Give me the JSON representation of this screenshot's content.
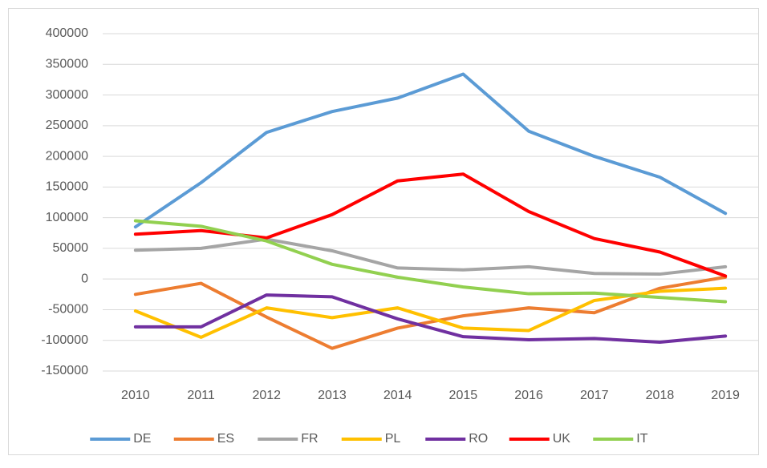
{
  "chart_data": {
    "type": "line",
    "categories": [
      "2010",
      "2011",
      "2012",
      "2013",
      "2014",
      "2015",
      "2016",
      "2017",
      "2018",
      "2019"
    ],
    "series": [
      {
        "name": "DE",
        "color": "#5b9bd5",
        "values": [
          85000,
          157000,
          239000,
          273000,
          295000,
          334000,
          241000,
          200000,
          166000,
          107000
        ]
      },
      {
        "name": "ES",
        "color": "#ed7d31",
        "values": [
          -25000,
          -7000,
          -62000,
          -113000,
          -80000,
          -60000,
          -47000,
          -55000,
          -15000,
          3000
        ]
      },
      {
        "name": "FR",
        "color": "#a5a5a5",
        "values": [
          47000,
          50000,
          65000,
          46000,
          18000,
          15000,
          20000,
          9000,
          8000,
          20000
        ]
      },
      {
        "name": "PL",
        "color": "#ffc000",
        "values": [
          -52000,
          -95000,
          -47000,
          -63000,
          -47000,
          -80000,
          -84000,
          -35000,
          -20000,
          -15000
        ]
      },
      {
        "name": "RO",
        "color": "#7030a0",
        "values": [
          -78000,
          -78000,
          -26000,
          -29000,
          -65000,
          -94000,
          -99000,
          -97000,
          -103000,
          -93000
        ]
      },
      {
        "name": "UK",
        "color": "#ff0000",
        "values": [
          73000,
          79000,
          67000,
          105000,
          160000,
          171000,
          110000,
          66000,
          44000,
          5000
        ]
      },
      {
        "name": "IT",
        "color": "#92d050",
        "values": [
          95000,
          86000,
          62000,
          24000,
          3000,
          -13000,
          -24000,
          -23000,
          -30000,
          -37000
        ]
      }
    ],
    "ylim": [
      -150000,
      400000
    ],
    "yticks": [
      -150000,
      -100000,
      -50000,
      0,
      50000,
      100000,
      150000,
      200000,
      250000,
      300000,
      350000,
      400000
    ],
    "grid": true,
    "legend": "bottom"
  }
}
